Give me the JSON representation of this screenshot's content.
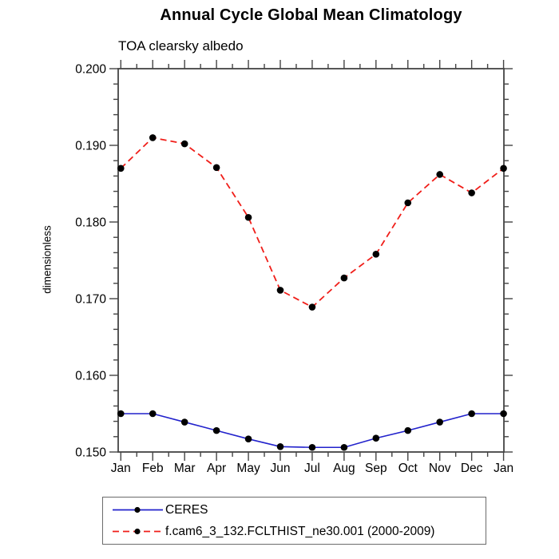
{
  "chart_data": {
    "type": "line",
    "title": "Annual Cycle Global Mean Climatology",
    "subtitle": "TOA clearsky albedo",
    "ylabel": "dimensionless",
    "xlabel": "",
    "categories": [
      "Jan",
      "Feb",
      "Mar",
      "Apr",
      "May",
      "Jun",
      "Jul",
      "Aug",
      "Sep",
      "Oct",
      "Nov",
      "Dec",
      "Jan"
    ],
    "ylim": [
      0.15,
      0.2
    ],
    "ytick_labels": [
      "0.150",
      "0.160",
      "0.170",
      "0.180",
      "0.190",
      "0.200"
    ],
    "ytick_interval": 0.01,
    "yminor_interval": 0.002,
    "xminor_ticks": "half-month",
    "grid": false,
    "tick_direction": "out",
    "legend_position": "below-axis-left",
    "axis_color": "#444444",
    "series": [
      {
        "name": "CERES",
        "color": "#2222cc",
        "style": "solid",
        "marker": "filled-circle",
        "marker_color": "#000000",
        "values": [
          0.155,
          0.155,
          0.1539,
          0.1528,
          0.1517,
          0.1507,
          0.1506,
          0.1506,
          0.1518,
          0.1528,
          0.1539,
          0.155,
          0.155
        ]
      },
      {
        "name": "f.cam6_3_132.FCLTHIST_ne30.001 (2000-2009)",
        "color": "#f01e19",
        "style": "dashed",
        "marker": "filled-circle",
        "marker_color": "#000000",
        "values": [
          0.187,
          0.191,
          0.1902,
          0.1871,
          0.1806,
          0.1711,
          0.1689,
          0.1727,
          0.1758,
          0.1825,
          0.1862,
          0.1838,
          0.187
        ]
      }
    ]
  }
}
